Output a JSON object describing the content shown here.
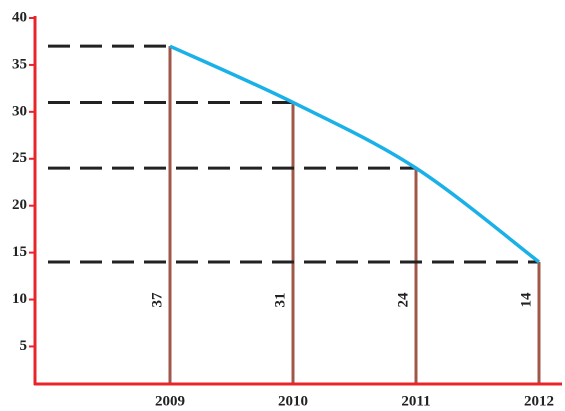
{
  "chart_data": {
    "type": "line",
    "categories": [
      "2009",
      "2010",
      "2011",
      "2012"
    ],
    "values": [
      37,
      31,
      24,
      14
    ],
    "color": "#1ab0e8",
    "ylim": [
      1,
      40
    ],
    "yticks": [
      5,
      10,
      15,
      20,
      25,
      30,
      35,
      40
    ]
  }
}
